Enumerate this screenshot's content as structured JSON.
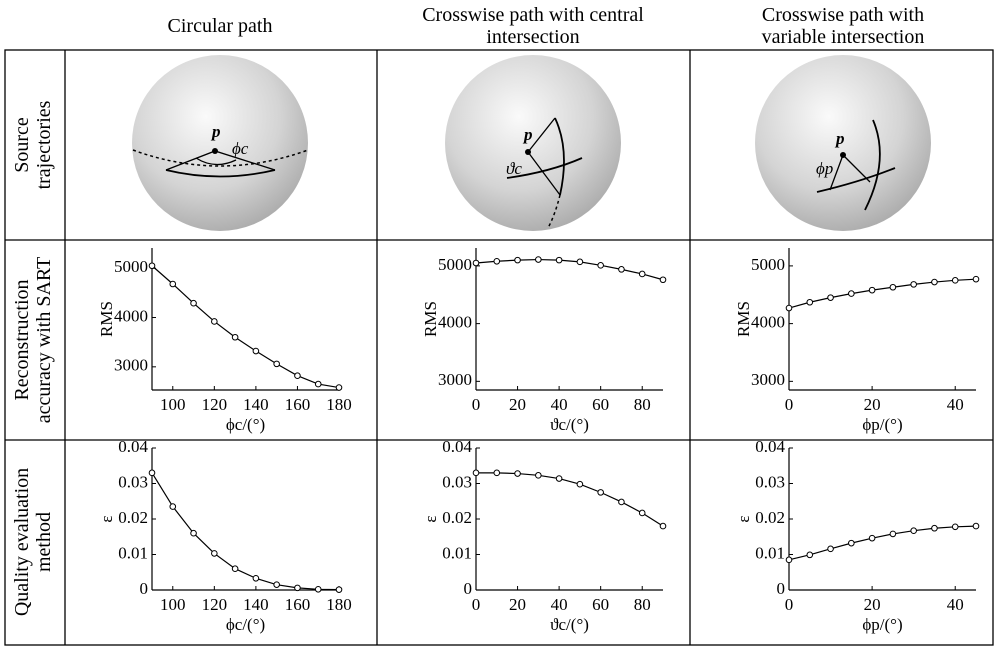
{
  "columns": [
    "Circular path",
    "Crosswise path with central intersection",
    "Crosswise path with variable intersection"
  ],
  "rows": [
    "Source trajectories",
    "Reconstruction accuracy with SART",
    "Quality evaluation method"
  ],
  "diagrams": [
    {
      "labels": [
        "p",
        "ϕc"
      ]
    },
    {
      "labels": [
        "p",
        "ϑc"
      ]
    },
    {
      "labels": [
        "p",
        "ϕp"
      ]
    }
  ],
  "chart_data": [
    {
      "type": "line",
      "color": "#000000",
      "xlabel": "ϕc/(°)",
      "ylabel": "RMS",
      "x": [
        90,
        100,
        110,
        120,
        130,
        140,
        150,
        160,
        170,
        180
      ],
      "values": [
        5050,
        4680,
        4290,
        3920,
        3600,
        3320,
        3060,
        2820,
        2650,
        2580
      ],
      "xlim": [
        90,
        180
      ],
      "ylim": [
        2530,
        5410
      ],
      "xticks": [
        100,
        120,
        140,
        160,
        180
      ],
      "yticks": [
        3000,
        4000,
        5000
      ]
    },
    {
      "type": "line",
      "color": "#000000",
      "xlabel": "ϑc/(°)",
      "ylabel": "RMS",
      "x": [
        0,
        10,
        20,
        30,
        40,
        50,
        60,
        70,
        80,
        90
      ],
      "values": [
        5050,
        5080,
        5100,
        5110,
        5100,
        5070,
        5010,
        4940,
        4860,
        4760
      ],
      "xlim": [
        0,
        90
      ],
      "ylim": [
        2850,
        5310
      ],
      "xticks": [
        0,
        20,
        40,
        60,
        80
      ],
      "yticks": [
        3000,
        4000,
        5000
      ]
    },
    {
      "type": "line",
      "color": "#000000",
      "xlabel": "ϕp/(°)",
      "ylabel": "RMS",
      "x": [
        0,
        5,
        10,
        15,
        20,
        25,
        30,
        35,
        40,
        45
      ],
      "values": [
        4270,
        4370,
        4450,
        4520,
        4580,
        4630,
        4680,
        4720,
        4750,
        4770
      ],
      "xlim": [
        0,
        45
      ],
      "ylim": [
        2850,
        5310
      ],
      "xticks": [
        0,
        20,
        40
      ],
      "yticks": [
        3000,
        4000,
        5000
      ]
    },
    {
      "type": "line",
      "color": "#000000",
      "xlabel": "ϕc/(°)",
      "ylabel": "ε",
      "x": [
        90,
        100,
        110,
        120,
        130,
        140,
        150,
        160,
        170,
        180
      ],
      "values": [
        0.033,
        0.0235,
        0.016,
        0.0103,
        0.006,
        0.0033,
        0.0015,
        0.0006,
        0.0002,
        0.0001
      ],
      "xlim": [
        90,
        180
      ],
      "ylim": [
        0,
        0.04
      ],
      "xticks": [
        100,
        120,
        140,
        160,
        180
      ],
      "yticks": [
        0,
        0.01,
        0.02,
        0.03,
        0.04
      ]
    },
    {
      "type": "line",
      "color": "#000000",
      "xlabel": "ϑc/(°)",
      "ylabel": "ε",
      "x": [
        0,
        10,
        20,
        30,
        40,
        50,
        60,
        70,
        80,
        90
      ],
      "values": [
        0.033,
        0.033,
        0.0328,
        0.0323,
        0.0314,
        0.0298,
        0.0275,
        0.0248,
        0.0217,
        0.018
      ],
      "xlim": [
        0,
        90
      ],
      "ylim": [
        0,
        0.04
      ],
      "xticks": [
        0,
        20,
        40,
        60,
        80
      ],
      "yticks": [
        0,
        0.01,
        0.02,
        0.03,
        0.04
      ]
    },
    {
      "type": "line",
      "color": "#000000",
      "xlabel": "ϕp/(°)",
      "ylabel": "ε",
      "x": [
        0,
        5,
        10,
        15,
        20,
        25,
        30,
        35,
        40,
        45
      ],
      "values": [
        0.0085,
        0.0099,
        0.0116,
        0.0132,
        0.0146,
        0.0158,
        0.0167,
        0.0174,
        0.0178,
        0.018
      ],
      "xlim": [
        0,
        45
      ],
      "ylim": [
        0,
        0.04
      ],
      "xticks": [
        0,
        20,
        40
      ],
      "yticks": [
        0,
        0.01,
        0.02,
        0.03,
        0.04
      ]
    }
  ]
}
